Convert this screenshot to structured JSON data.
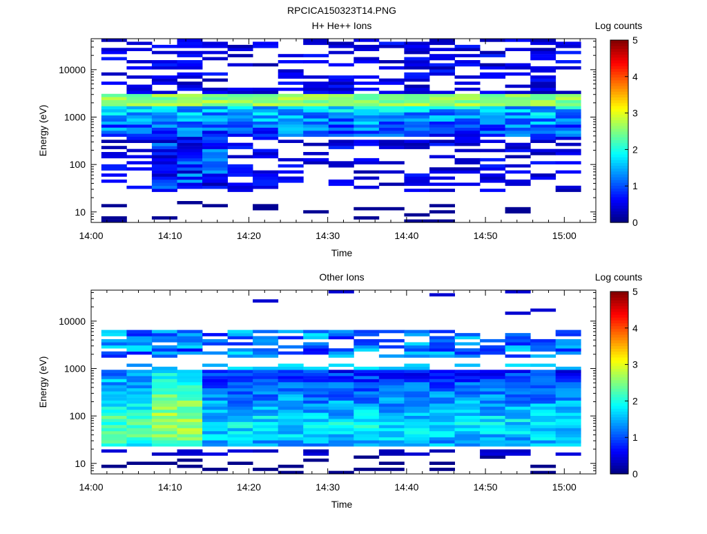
{
  "figure_title": "RPCICA150323T14.PNG",
  "chart_data": [
    {
      "type": "heatmap",
      "title": "H+ He++ Ions",
      "xlabel": "Time",
      "ylabel": "Energy (eV)",
      "x_ticks": [
        "14:00",
        "14:10",
        "14:20",
        "14:30",
        "14:40",
        "14:50",
        "15:00"
      ],
      "y_ticks": [
        "10",
        "100",
        "1000",
        "10000"
      ],
      "y_scale": "log",
      "ylim": [
        6,
        45000
      ],
      "colorbar": {
        "label": "Log counts",
        "ticks": [
          "0",
          "1",
          "2",
          "3",
          "4",
          "5"
        ],
        "range": [
          0,
          5
        ],
        "colormap": "jet"
      },
      "columns": 19,
      "column_times": [
        "14:01.3",
        "14:04.5",
        "14:07.7",
        "14:10.9",
        "14:14.1",
        "14:17.3",
        "14:20.5",
        "14:23.7",
        "14:26.9",
        "14:30.1",
        "14:33.3",
        "14:36.5",
        "14:39.7",
        "14:42.9",
        "14:46.1",
        "14:49.3",
        "14:52.5",
        "14:55.7",
        "14:58.9"
      ],
      "peak_band_ev": 2400,
      "peak_log_counts": 2.9
    },
    {
      "type": "heatmap",
      "title": "Other Ions",
      "xlabel": "Time",
      "ylabel": "Energy (eV)",
      "x_ticks": [
        "14:00",
        "14:10",
        "14:20",
        "14:30",
        "14:40",
        "14:50",
        "15:00"
      ],
      "y_ticks": [
        "10",
        "100",
        "1000",
        "10000"
      ],
      "y_scale": "log",
      "ylim": [
        6,
        45000
      ],
      "colorbar": {
        "label": "Log counts",
        "ticks": [
          "0",
          "1",
          "2",
          "3",
          "4",
          "5"
        ],
        "range": [
          0,
          5
        ],
        "colormap": "jet"
      },
      "columns": 19,
      "column_times": [
        "14:01.3",
        "14:04.5",
        "14:07.7",
        "14:10.9",
        "14:14.1",
        "14:17.3",
        "14:20.5",
        "14:23.7",
        "14:26.9",
        "14:30.1",
        "14:33.3",
        "14:36.5",
        "14:39.7",
        "14:42.9",
        "14:46.1",
        "14:49.3",
        "14:52.5",
        "14:55.7",
        "14:58.9"
      ],
      "peak_band_ev": 50,
      "peak_log_counts": 3.5
    }
  ]
}
